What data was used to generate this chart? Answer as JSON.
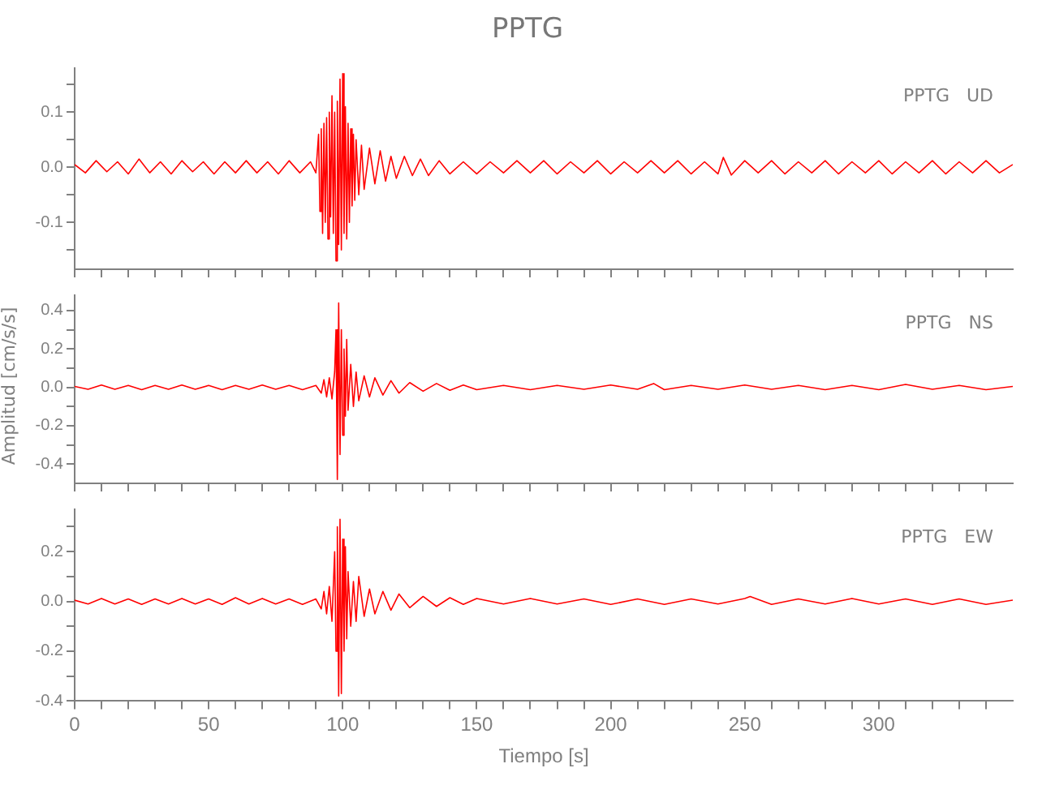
{
  "chart_data": [
    {
      "type": "line",
      "title": "PPTG",
      "xlim": [
        0,
        350
      ],
      "ylim": [
        -0.185,
        0.18
      ],
      "tick_labels": "y",
      "grid": false,
      "legend": false,
      "xticks": [
        0,
        {
          "value": 10,
          "label": null
        },
        {
          "value": 20,
          "label": null
        },
        {
          "value": 30,
          "label": null
        },
        {
          "value": 40,
          "label": null
        },
        50,
        {
          "value": 60,
          "label": null
        },
        {
          "value": 70,
          "label": null
        },
        {
          "value": 80,
          "label": null
        },
        {
          "value": 90,
          "label": null
        },
        100,
        {
          "value": 110,
          "label": null
        },
        {
          "value": 120,
          "label": null
        },
        {
          "value": 130,
          "label": null
        },
        {
          "value": 140,
          "label": null
        },
        150,
        {
          "value": 160,
          "label": null
        },
        {
          "value": 170,
          "label": null
        },
        {
          "value": 180,
          "label": null
        },
        {
          "value": 190,
          "label": null
        },
        200,
        {
          "value": 210,
          "label": null
        },
        {
          "value": 220,
          "label": null
        },
        {
          "value": 230,
          "label": null
        },
        {
          "value": 240,
          "label": null
        },
        250,
        {
          "value": 260,
          "label": null
        },
        {
          "value": 270,
          "label": null
        },
        {
          "value": 280,
          "label": null
        },
        {
          "value": 290,
          "label": null
        },
        300,
        {
          "value": 310,
          "label": null
        },
        {
          "value": 320,
          "label": null
        },
        {
          "value": 330,
          "label": null
        },
        {
          "value": 340,
          "label": null
        }
      ],
      "yticks": [
        {
          "value": -0.15,
          "label": null
        },
        {
          "value": -0.1,
          "label": "-0.1"
        },
        {
          "value": -0.05,
          "label": null
        },
        {
          "value": 0,
          "label": "0.0"
        },
        {
          "value": 0.05,
          "label": null
        },
        {
          "value": 0.1,
          "label": "0.1"
        },
        {
          "value": 0.15,
          "label": null
        }
      ],
      "series": [
        {
          "name": "PPTG   UD",
          "color": "#ff0000",
          "x": [
            0,
            4,
            8,
            12,
            16,
            20,
            24,
            28,
            32,
            36,
            40,
            44,
            48,
            52,
            56,
            60,
            64,
            68,
            72,
            76,
            80,
            84,
            88,
            90,
            91,
            91.5,
            92,
            92.5,
            93,
            93.5,
            94,
            94.5,
            95,
            95.5,
            96,
            96.5,
            97,
            97.5,
            98,
            98.5,
            99,
            99.5,
            100,
            100.5,
            101,
            101.5,
            102,
            102.5,
            103,
            103.5,
            104,
            104.5,
            105,
            106,
            107,
            108,
            110,
            112,
            114,
            116,
            118,
            120,
            123,
            126,
            129,
            132,
            136,
            140,
            145,
            150,
            155,
            160,
            165,
            170,
            175,
            180,
            185,
            190,
            195,
            200,
            205,
            210,
            215,
            220,
            225,
            230,
            235,
            240,
            242,
            245,
            250,
            255,
            260,
            265,
            270,
            275,
            280,
            285,
            290,
            295,
            300,
            305,
            310,
            315,
            320,
            325,
            330,
            335,
            340,
            345,
            350
          ],
          "values": [
            0.005,
            -0.01,
            0.012,
            -0.008,
            0.01,
            -0.012,
            0.015,
            -0.01,
            0.01,
            -0.012,
            0.012,
            -0.008,
            0.01,
            -0.012,
            0.01,
            -0.01,
            0.012,
            -0.01,
            0.01,
            -0.012,
            0.012,
            -0.01,
            0.01,
            -0.01,
            0.06,
            -0.08,
            0.07,
            -0.12,
            0.08,
            -0.1,
            0.09,
            -0.13,
            0.1,
            -0.09,
            0.13,
            -0.12,
            0.1,
            -0.17,
            0.12,
            -0.14,
            0.16,
            -0.15,
            0.17,
            -0.12,
            0.11,
            -0.13,
            0.08,
            -0.1,
            0.07,
            -0.07,
            0.06,
            -0.06,
            0.05,
            -0.05,
            0.04,
            -0.04,
            0.035,
            -0.03,
            0.03,
            -0.025,
            0.02,
            -0.02,
            0.02,
            -0.015,
            0.015,
            -0.015,
            0.012,
            -0.012,
            0.01,
            -0.012,
            0.01,
            -0.01,
            0.012,
            -0.01,
            0.012,
            -0.012,
            0.01,
            -0.01,
            0.012,
            -0.012,
            0.01,
            -0.01,
            0.012,
            -0.01,
            0.012,
            -0.012,
            0.01,
            -0.012,
            0.018,
            -0.014,
            0.012,
            -0.01,
            0.012,
            -0.012,
            0.01,
            -0.01,
            0.012,
            -0.012,
            0.01,
            -0.01,
            0.012,
            -0.012,
            0.01,
            -0.01,
            0.012,
            -0.012,
            0.01,
            -0.01,
            0.012,
            -0.01,
            0.005
          ]
        }
      ]
    },
    {
      "type": "line",
      "ylabel": "Amplitud [cm/s/s]",
      "xlim": [
        0,
        350
      ],
      "ylim": [
        -0.5,
        0.48
      ],
      "tick_labels": "y",
      "grid": false,
      "legend": false,
      "xticks": [
        0,
        {
          "value": 10,
          "label": null
        },
        {
          "value": 20,
          "label": null
        },
        {
          "value": 30,
          "label": null
        },
        {
          "value": 40,
          "label": null
        },
        50,
        {
          "value": 60,
          "label": null
        },
        {
          "value": 70,
          "label": null
        },
        {
          "value": 80,
          "label": null
        },
        {
          "value": 90,
          "label": null
        },
        100,
        {
          "value": 110,
          "label": null
        },
        {
          "value": 120,
          "label": null
        },
        {
          "value": 130,
          "label": null
        },
        {
          "value": 140,
          "label": null
        },
        150,
        {
          "value": 160,
          "label": null
        },
        {
          "value": 170,
          "label": null
        },
        {
          "value": 180,
          "label": null
        },
        {
          "value": 190,
          "label": null
        },
        200,
        {
          "value": 210,
          "label": null
        },
        {
          "value": 220,
          "label": null
        },
        {
          "value": 230,
          "label": null
        },
        {
          "value": 240,
          "label": null
        },
        250,
        {
          "value": 260,
          "label": null
        },
        {
          "value": 270,
          "label": null
        },
        {
          "value": 280,
          "label": null
        },
        {
          "value": 290,
          "label": null
        },
        300,
        {
          "value": 310,
          "label": null
        },
        {
          "value": 320,
          "label": null
        },
        {
          "value": 330,
          "label": null
        },
        {
          "value": 340,
          "label": null
        }
      ],
      "yticks": [
        {
          "value": -0.4,
          "label": "-0.4"
        },
        {
          "value": -0.3,
          "label": null
        },
        {
          "value": -0.2,
          "label": "-0.2"
        },
        {
          "value": -0.1,
          "label": null
        },
        {
          "value": 0,
          "label": "0.0"
        },
        {
          "value": 0.1,
          "label": null
        },
        {
          "value": 0.2,
          "label": "0.2"
        },
        {
          "value": 0.3,
          "label": null
        },
        {
          "value": 0.4,
          "label": "0.4"
        }
      ],
      "series": [
        {
          "name": "PPTG   NS",
          "color": "#ff0000",
          "x": [
            0,
            5,
            10,
            15,
            20,
            25,
            30,
            35,
            40,
            45,
            50,
            55,
            60,
            65,
            70,
            75,
            80,
            85,
            90,
            92,
            93,
            94,
            95,
            96,
            97,
            97.5,
            98,
            98.5,
            99,
            99.5,
            100,
            100.5,
            101,
            101.5,
            102,
            103,
            104,
            105,
            106,
            108,
            110,
            112,
            115,
            118,
            121,
            125,
            130,
            135,
            140,
            145,
            150,
            160,
            170,
            180,
            190,
            200,
            210,
            216,
            220,
            230,
            240,
            250,
            260,
            270,
            280,
            290,
            300,
            310,
            320,
            330,
            340,
            350
          ],
          "values": [
            0.005,
            -0.01,
            0.012,
            -0.01,
            0.01,
            -0.012,
            0.01,
            -0.01,
            0.012,
            -0.01,
            0.01,
            -0.012,
            0.01,
            -0.01,
            0.012,
            -0.01,
            0.01,
            -0.012,
            0.01,
            -0.03,
            0.04,
            -0.05,
            0.05,
            -0.06,
            0.08,
            0.3,
            -0.48,
            0.44,
            -0.35,
            0.3,
            -0.25,
            0.2,
            -0.15,
            0.25,
            -0.12,
            0.12,
            -0.1,
            0.08,
            -0.07,
            0.06,
            -0.05,
            0.05,
            -0.04,
            0.035,
            -0.03,
            0.025,
            -0.02,
            0.02,
            -0.015,
            0.012,
            -0.012,
            0.01,
            -0.012,
            0.01,
            -0.01,
            0.012,
            -0.01,
            0.02,
            -0.012,
            0.01,
            -0.01,
            0.012,
            -0.01,
            0.01,
            -0.012,
            0.01,
            -0.012,
            0.015,
            -0.01,
            0.01,
            -0.012,
            0.005
          ]
        }
      ]
    },
    {
      "type": "line",
      "xlabel": "Tiempo [s]",
      "xlim": [
        0,
        350
      ],
      "ylim": [
        -0.4,
        0.37
      ],
      "grid": false,
      "legend": false,
      "xticks": [
        0,
        {
          "value": 10,
          "label": null
        },
        {
          "value": 20,
          "label": null
        },
        {
          "value": 30,
          "label": null
        },
        {
          "value": 40,
          "label": null
        },
        50,
        {
          "value": 60,
          "label": null
        },
        {
          "value": 70,
          "label": null
        },
        {
          "value": 80,
          "label": null
        },
        {
          "value": 90,
          "label": null
        },
        100,
        {
          "value": 110,
          "label": null
        },
        {
          "value": 120,
          "label": null
        },
        {
          "value": 130,
          "label": null
        },
        {
          "value": 140,
          "label": null
        },
        150,
        {
          "value": 160,
          "label": null
        },
        {
          "value": 170,
          "label": null
        },
        {
          "value": 180,
          "label": null
        },
        {
          "value": 190,
          "label": null
        },
        200,
        {
          "value": 210,
          "label": null
        },
        {
          "value": 220,
          "label": null
        },
        {
          "value": 230,
          "label": null
        },
        {
          "value": 240,
          "label": null
        },
        250,
        {
          "value": 260,
          "label": null
        },
        {
          "value": 270,
          "label": null
        },
        {
          "value": 280,
          "label": null
        },
        {
          "value": 290,
          "label": null
        },
        300,
        {
          "value": 310,
          "label": null
        },
        {
          "value": 320,
          "label": null
        },
        {
          "value": 330,
          "label": null
        },
        {
          "value": 340,
          "label": null
        }
      ],
      "yticks": [
        {
          "value": -0.4,
          "label": "-0.4"
        },
        {
          "value": -0.3,
          "label": null
        },
        {
          "value": -0.2,
          "label": "-0.2"
        },
        {
          "value": -0.1,
          "label": null
        },
        {
          "value": 0,
          "label": "0.0"
        },
        {
          "value": 0.1,
          "label": null
        },
        {
          "value": 0.2,
          "label": "0.2"
        },
        {
          "value": 0.3,
          "label": null
        }
      ],
      "series": [
        {
          "name": "PPTG   EW",
          "color": "#ff0000",
          "x": [
            0,
            5,
            10,
            15,
            20,
            25,
            30,
            35,
            40,
            45,
            50,
            55,
            60,
            65,
            70,
            75,
            80,
            85,
            90,
            92,
            93,
            94,
            95,
            96,
            97,
            97.5,
            98,
            98.5,
            99,
            99.5,
            100,
            100.5,
            101,
            101.5,
            102,
            103,
            104,
            105,
            106,
            108,
            110,
            112,
            115,
            118,
            121,
            125,
            130,
            135,
            140,
            145,
            150,
            160,
            170,
            180,
            190,
            200,
            210,
            220,
            230,
            240,
            250,
            252,
            260,
            270,
            280,
            290,
            300,
            310,
            320,
            330,
            340,
            350
          ],
          "values": [
            0.005,
            -0.01,
            0.012,
            -0.01,
            0.01,
            -0.012,
            0.01,
            -0.01,
            0.012,
            -0.01,
            0.01,
            -0.012,
            0.015,
            -0.01,
            0.012,
            -0.01,
            0.01,
            -0.012,
            0.01,
            -0.03,
            0.04,
            -0.05,
            0.06,
            -0.08,
            0.2,
            -0.2,
            0.3,
            -0.38,
            0.33,
            -0.37,
            0.25,
            -0.2,
            0.22,
            -0.15,
            0.12,
            -0.1,
            0.08,
            -0.08,
            0.1,
            -0.06,
            0.05,
            -0.05,
            0.04,
            -0.035,
            0.03,
            -0.025,
            0.02,
            -0.02,
            0.015,
            -0.012,
            0.012,
            -0.01,
            0.012,
            -0.01,
            0.01,
            -0.012,
            0.01,
            -0.012,
            0.01,
            -0.01,
            0.012,
            0.02,
            -0.012,
            0.01,
            -0.01,
            0.012,
            -0.01,
            0.01,
            -0.012,
            0.01,
            -0.012,
            0.005
          ]
        }
      ]
    }
  ]
}
